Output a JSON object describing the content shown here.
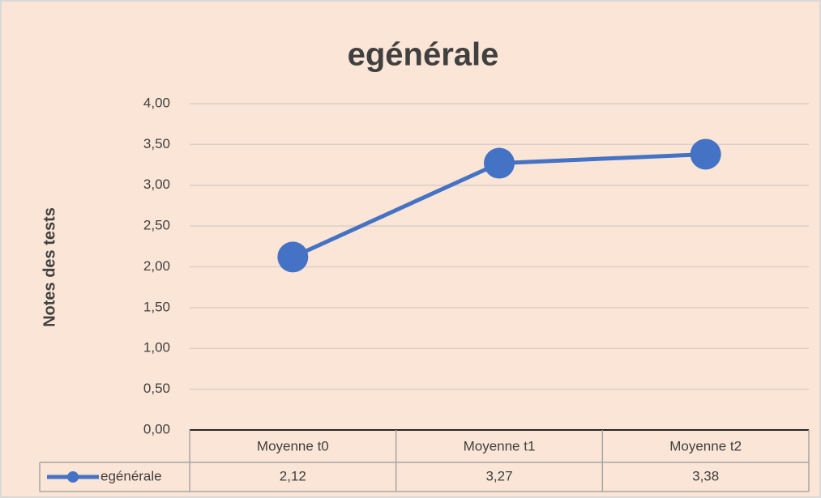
{
  "chart_data": {
    "type": "line",
    "title": "egénérale",
    "y_label": "Notes des tests",
    "categories": [
      "Moyenne t0",
      "Moyenne t1",
      "Moyenne t2"
    ],
    "series": [
      {
        "name": "egénérale",
        "color": "#4472c4",
        "values": [
          2.12,
          3.27,
          3.38
        ],
        "value_labels": [
          "2,12",
          "3,27",
          "3,38"
        ]
      }
    ],
    "ylim": [
      0,
      4
    ],
    "yticks": [
      {
        "value": 0,
        "label": "0,00"
      },
      {
        "value": 0.5,
        "label": "0,50"
      },
      {
        "value": 1,
        "label": "1,00"
      },
      {
        "value": 1.5,
        "label": "1,50"
      },
      {
        "value": 2,
        "label": "2,00"
      },
      {
        "value": 2.5,
        "label": "2,50"
      },
      {
        "value": 3,
        "label": "3,00"
      },
      {
        "value": 3.5,
        "label": "3,50"
      },
      {
        "value": 4,
        "label": "4,00"
      }
    ],
    "grid": true,
    "data_table": true
  }
}
